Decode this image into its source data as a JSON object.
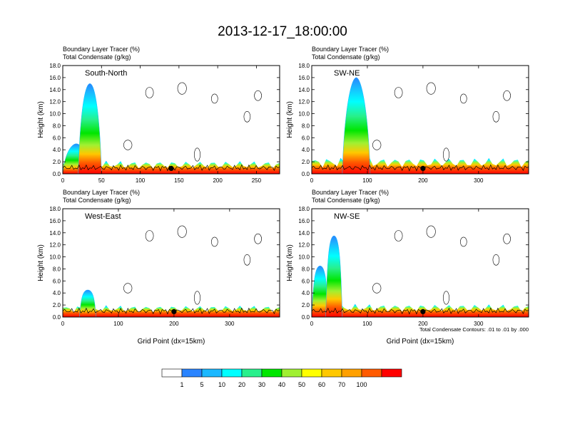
{
  "title": "2013-12-17_18:00:00",
  "chart_data": {
    "type": "heatmap",
    "title": "2013-12-17_18:00:00",
    "shaded_field": "Boundary Layer Tracer",
    "shaded_units": "(%)",
    "contour_field": "Total Condensate",
    "contour_units": "(g/kg)",
    "contour_info": "Total Condensate Contours: .01 to .01 by .000",
    "xlabel": "Grid Point (dx=15km)",
    "ylabel": "Height (km)",
    "ylim": [
      0,
      18
    ],
    "yticks": [
      "0.0",
      "2.0",
      "4.0",
      "6.0",
      "8.0",
      "10.0",
      "12.0",
      "14.0",
      "16.0",
      "18.0"
    ],
    "colorbar_labels": [
      "1",
      "5",
      "10",
      "20",
      "30",
      "40",
      "50",
      "60",
      "70",
      "100"
    ],
    "colorbar_colors": [
      "#ffffff",
      "#2a84ff",
      "#1bb8ff",
      "#00ffff",
      "#28f08c",
      "#00e600",
      "#a0f032",
      "#ffff00",
      "#ffc800",
      "#ffa000",
      "#ff5a00",
      "#ff0000"
    ],
    "panels": [
      {
        "name": "South-North",
        "xmax": 280,
        "xticks": [
          0,
          50,
          100,
          150,
          200,
          250
        ],
        "marker_x": 140,
        "plumes": [
          {
            "x0": 0,
            "x1": 35,
            "top": 5.0
          },
          {
            "x0": 20,
            "x1": 50,
            "top": 15.0
          }
        ],
        "surface_layer_top": 2.0
      },
      {
        "name": "SW-NE",
        "xmax": 390,
        "xticks": [
          0,
          100,
          200,
          300
        ],
        "marker_x": 200,
        "plumes": [
          {
            "x0": 55,
            "x1": 105,
            "top": 16.0
          }
        ],
        "surface_layer_top": 2.5
      },
      {
        "name": "West-East",
        "xmax": 390,
        "xticks": [
          0,
          100,
          200,
          300
        ],
        "marker_x": 200,
        "plumes": [
          {
            "x0": 30,
            "x1": 60,
            "top": 4.5
          }
        ],
        "surface_layer_top": 1.8
      },
      {
        "name": "NW-SE",
        "xmax": 390,
        "xticks": [
          0,
          100,
          200,
          300
        ],
        "marker_x": 200,
        "plumes": [
          {
            "x0": 0,
            "x1": 30,
            "top": 8.5
          },
          {
            "x0": 25,
            "x1": 55,
            "top": 13.5
          }
        ],
        "surface_layer_top": 2.0
      }
    ]
  }
}
